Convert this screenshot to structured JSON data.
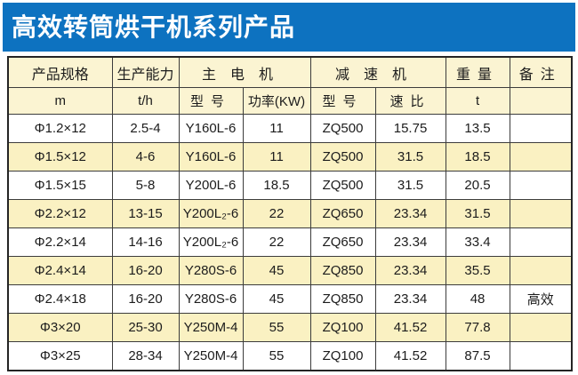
{
  "title": "高效转筒烘干机系列产品",
  "colors": {
    "title_bg": "#0d72c0",
    "title_text": "#ffffff",
    "header_bg": "#fbf4d2",
    "alt_row_bg": "#faf1c2",
    "border": "#3c3c3c"
  },
  "table": {
    "header_row1": {
      "spec": "产品规格",
      "capacity": "生产能力",
      "main_motor": "主电机",
      "reducer": "减速机",
      "weight": "重量",
      "remarks": "备注"
    },
    "header_row2": {
      "spec_unit": "m",
      "capacity_unit": "t/h",
      "motor_model": "型号",
      "motor_power": "功率(KW)",
      "reducer_model": "型号",
      "reducer_ratio": "速比",
      "weight_unit": "t",
      "remarks_unit": ""
    },
    "rows": [
      [
        "Φ1.2×12",
        "2.5-4",
        "Y160L-6",
        "11",
        "ZQ500",
        "15.75",
        "13.5",
        ""
      ],
      [
        "Φ1.5×12",
        "4-6",
        "Y160L-6",
        "11",
        "ZQ500",
        "31.5",
        "18.5",
        ""
      ],
      [
        "Φ1.5×15",
        "5-8",
        "Y200L-6",
        "18.5",
        "ZQ500",
        "31.5",
        "20.5",
        ""
      ],
      [
        "Φ2.2×12",
        "13-15",
        "Y200L₂-6",
        "22",
        "ZQ650",
        "23.34",
        "31.5",
        ""
      ],
      [
        "Φ2.2×14",
        "14-16",
        "Y200L₂-6",
        "22",
        "ZQ650",
        "23.34",
        "33.4",
        ""
      ],
      [
        "Φ2.4×14",
        "16-20",
        "Y280S-6",
        "45",
        "ZQ850",
        "23.34",
        "35.5",
        ""
      ],
      [
        "Φ2.4×18",
        "16-20",
        "Y280S-6",
        "45",
        "ZQ850",
        "23.34",
        "48",
        "高效"
      ],
      [
        "Φ3×20",
        "25-30",
        "Y250M-4",
        "55",
        "ZQ100",
        "41.52",
        "77.8",
        ""
      ],
      [
        "Φ3×25",
        "28-34",
        "Y250M-4",
        "55",
        "ZQ100",
        "41.52",
        "87.5",
        ""
      ]
    ]
  }
}
